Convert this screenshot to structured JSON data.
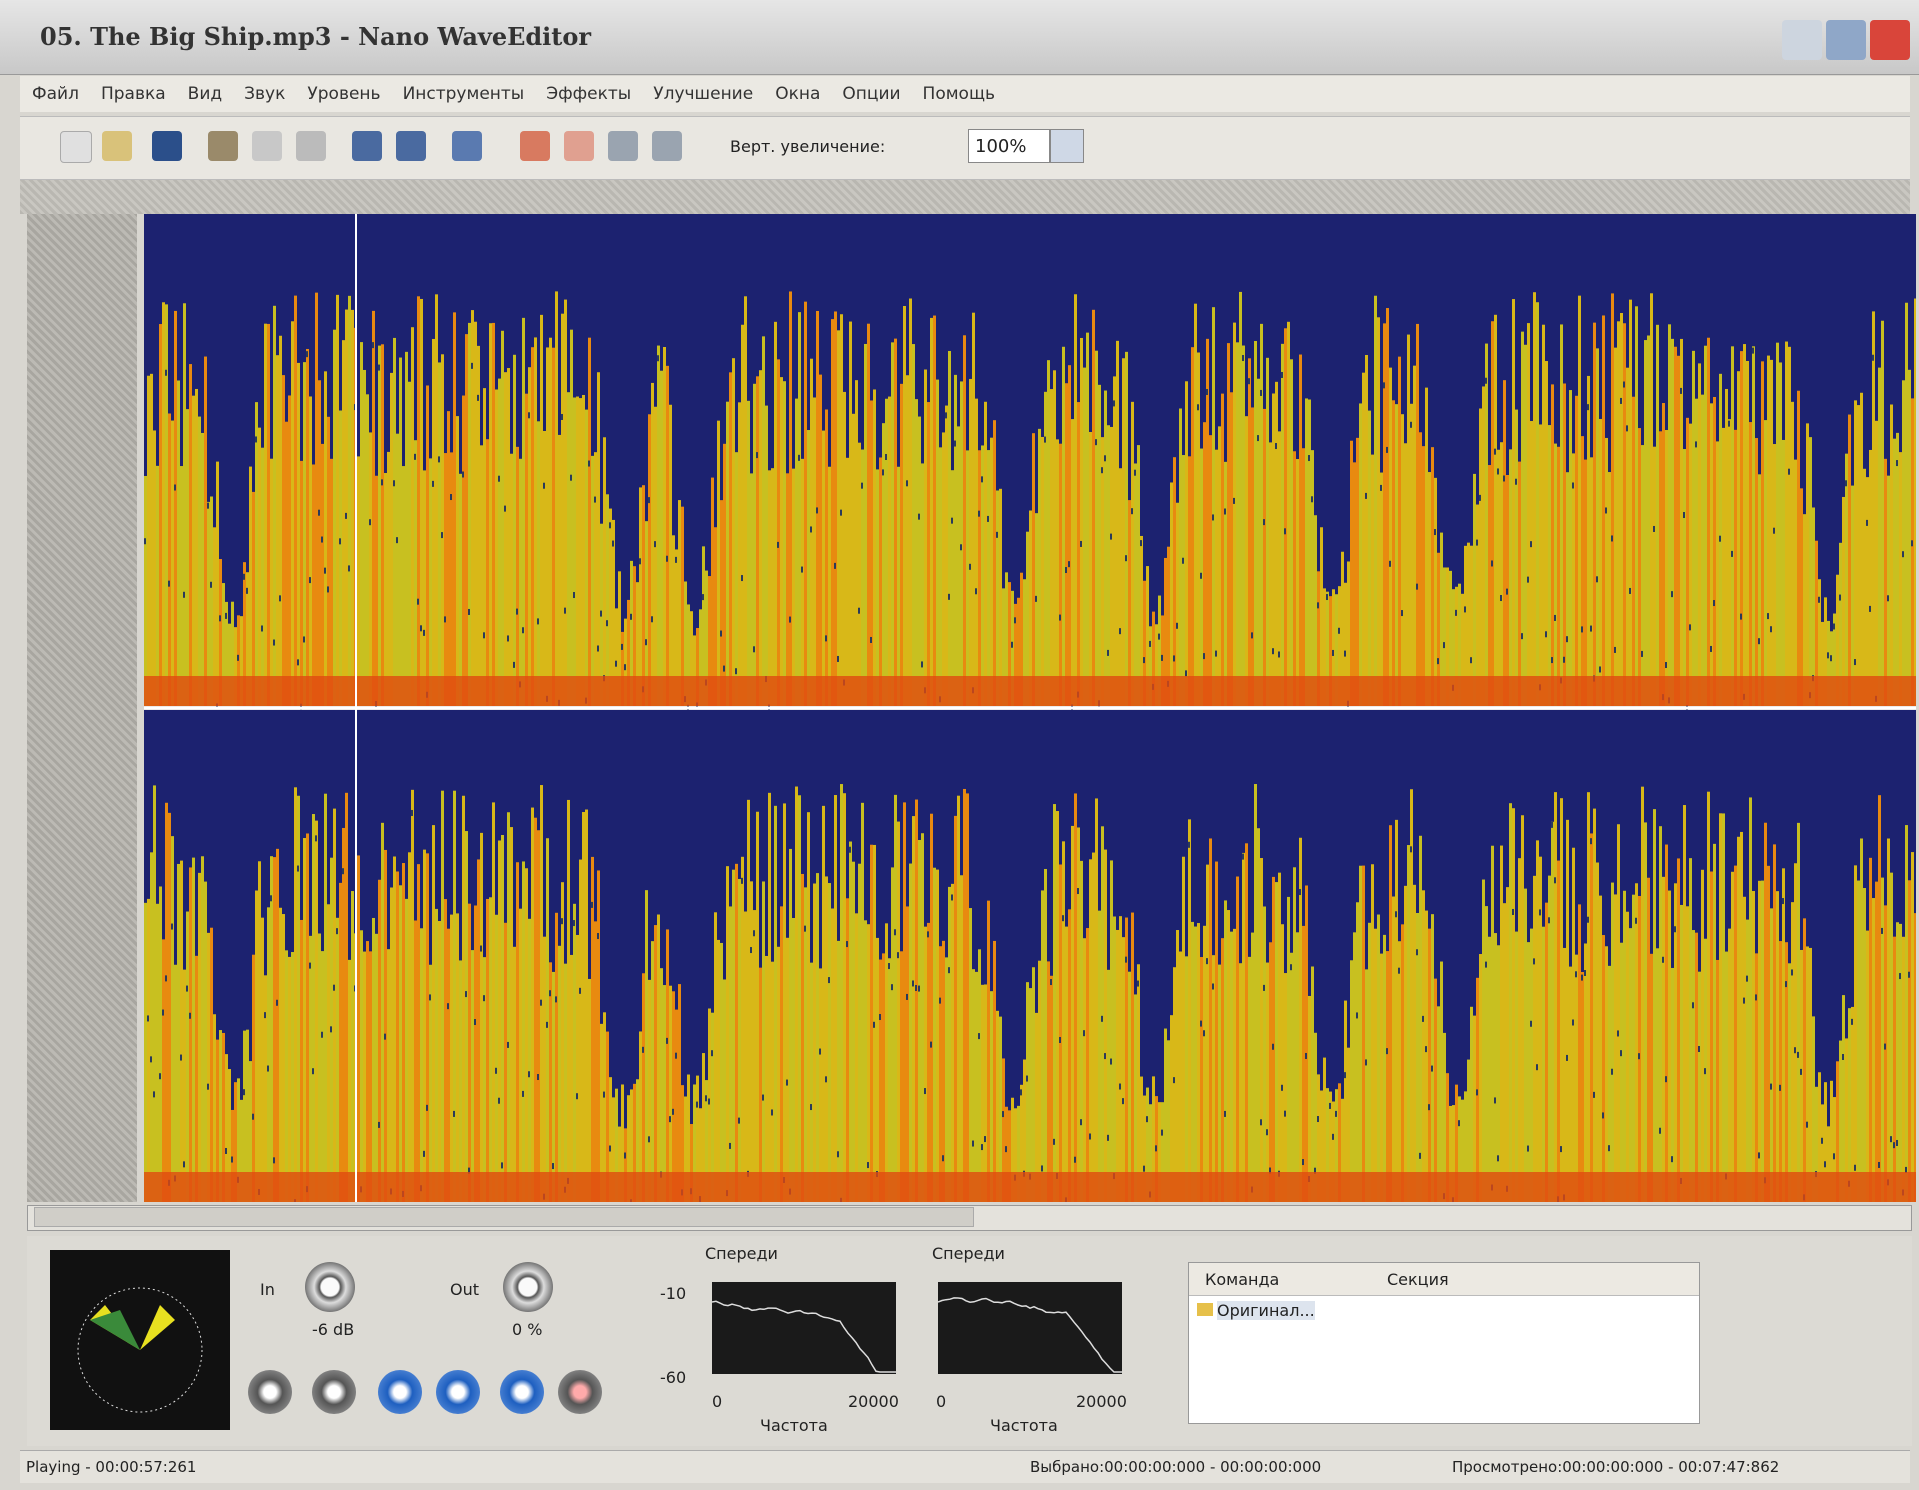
{
  "window": {
    "title": "05. The Big Ship.mp3 - Nano WaveEditor"
  },
  "menu": [
    "Файл",
    "Правка",
    "Вид",
    "Звук",
    "Уровень",
    "Инструменты",
    "Эффекты",
    "Улучшение",
    "Окна",
    "Опции",
    "Помощь"
  ],
  "toolbar": {
    "zoom_label": "Верт. увеличение:",
    "zoom_value": "100%"
  },
  "mixer": {
    "in_label": "In",
    "in_value": "-6 dB",
    "out_label": "Out",
    "out_value": "0 %"
  },
  "spectrum": [
    {
      "title": "Спереди",
      "y_top": "-10",
      "y_bottom": "-60",
      "x_start": "0",
      "x_end": "20000",
      "x_label": "Частота"
    },
    {
      "title": "Спереди",
      "x_start": "0",
      "x_end": "20000",
      "x_label": "Частота"
    }
  ],
  "history": {
    "columns": [
      "Команда",
      "Секция"
    ],
    "rows": [
      [
        "Оригинал..."
      ]
    ]
  },
  "status": {
    "playing": "Playing - 00:00:57:261",
    "selected": "Выбрано:00:00:00:000 - 00:00:00:000",
    "viewed": "Просмотрено:00:00:00:000 - 00:07:47:862"
  }
}
